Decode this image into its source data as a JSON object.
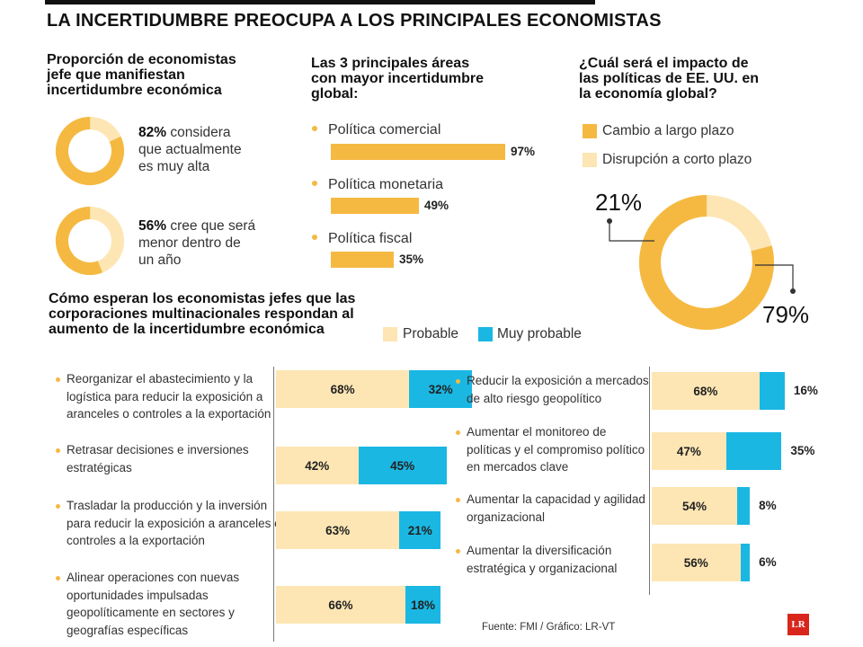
{
  "title": "LA INCERTIDUMBRE PREOCUPA A LOS PRINCIPALES ECONOMISTAS",
  "colors": {
    "orange": "#f5b942",
    "light": "#fde6b4",
    "blue": "#1ab7e3"
  },
  "section1": {
    "heading": [
      "Proporción de economistas",
      "jefe que manifiestan",
      "incertidumbre económica"
    ],
    "stat1": {
      "pct": "82%",
      "lines": [
        " considera",
        "que actualmente",
        "es muy alta"
      ]
    },
    "stat2": {
      "pct": "56%",
      "lines": [
        " cree que será",
        "menor dentro de",
        "un año"
      ]
    }
  },
  "section2": {
    "heading": [
      "Las 3 principales áreas",
      "con mayor incertidumbre",
      "global:"
    ]
  },
  "section3": {
    "heading": [
      "¿Cuál será el impacto de",
      "las políticas de EE. UU. en",
      "la economía global?"
    ]
  },
  "section4": {
    "heading": [
      "Cómo esperan los economistas jefes que las",
      "corporaciones multinacionales respondan al",
      "aumento de la incertidumbre económica"
    ],
    "legend": {
      "probable": "Probable",
      "muy": "Muy probable"
    }
  },
  "chart_data": [
    {
      "type": "pie",
      "title": "Proporción de economistas jefe que manifiestan incertidumbre económica",
      "categories": [
        "considera que actualmente es muy alta",
        "resto"
      ],
      "values": [
        82,
        18
      ]
    },
    {
      "type": "pie",
      "title": "Proporción de economistas jefe que manifiestan incertidumbre económica",
      "categories": [
        "cree que será menor dentro de un año",
        "resto"
      ],
      "values": [
        56,
        44
      ]
    },
    {
      "type": "bar",
      "title": "Las 3 principales áreas con mayor incertidumbre global:",
      "categories": [
        "Política comercial",
        "Política monetaria",
        "Política fiscal"
      ],
      "values": [
        97,
        49,
        35
      ],
      "labels": [
        "97%",
        "49%",
        "35%"
      ],
      "ylim": [
        0,
        100
      ]
    },
    {
      "type": "pie",
      "title": "¿Cuál será el impacto de las políticas de EE. UU. en la economía global?",
      "categories": [
        "Cambio a largo plazo",
        "Disrupción a corto plazo"
      ],
      "values": [
        79,
        21
      ],
      "labels": [
        "79%",
        "21%"
      ]
    },
    {
      "type": "bar",
      "title": "Cómo esperan los economistas jefes que las corporaciones multinacionales respondan al aumento de la incertidumbre económica",
      "categories": [
        "Reorganizar el abastecimiento y la logística para reducir la exposición a aranceles o controles a la exportación",
        "Retrasar decisiones e inversiones estratégicas",
        "Trasladar la producción y la inversión para reducir la exposición a aranceles o controles a la exportación",
        "Alinear operaciones con nuevas oportunidades impulsadas geopolíticamente en sectores y geografías específicas",
        "Reducir la exposición a mercados de alto riesgo geopolítico",
        "Aumentar el monitoreo de políticas y el compromiso político en mercados clave",
        "Aumentar la capacidad y agilidad organizacional",
        "Aumentar la diversificación estratégica y organizacional"
      ],
      "lines": [
        [
          "Reorganizar el abastecimiento y la",
          "logística para reducir la exposición a",
          "aranceles o controles a la exportación"
        ],
        [
          "Retrasar decisiones e inversiones",
          "estratégicas"
        ],
        [
          "Trasladar la producción y la inversión",
          "para reducir la exposición a aranceles o",
          "controles a la exportación"
        ],
        [
          "Alinear operaciones con nuevas",
          "oportunidades impulsadas",
          "geopolíticamente en sectores y",
          "geografías específicas"
        ],
        [
          "Reducir la exposición a mercados",
          "de alto riesgo geopolítico"
        ],
        [
          "Aumentar el monitoreo de",
          "políticas y el compromiso político",
          "en mercados clave"
        ],
        [
          "Aumentar la capacidad y agilidad",
          "organizacional"
        ],
        [
          "Aumentar la diversificación",
          "estratégica y organizacional"
        ]
      ],
      "series": [
        {
          "name": "Probable",
          "values": [
            68,
            42,
            63,
            66,
            68,
            47,
            54,
            56
          ],
          "labels": [
            "68%",
            "42%",
            "63%",
            "66%",
            "68%",
            "47%",
            "54%",
            "56%"
          ]
        },
        {
          "name": "Muy probable",
          "values": [
            32,
            45,
            21,
            18,
            16,
            35,
            8,
            6
          ],
          "labels": [
            "32%",
            "45%",
            "21%",
            "18%",
            "16%",
            "35%",
            "8%",
            "6%"
          ]
        }
      ]
    }
  ],
  "footer": {
    "source": "Fuente: FMI  / Gráfico: LR-VT",
    "logo": "LR"
  }
}
